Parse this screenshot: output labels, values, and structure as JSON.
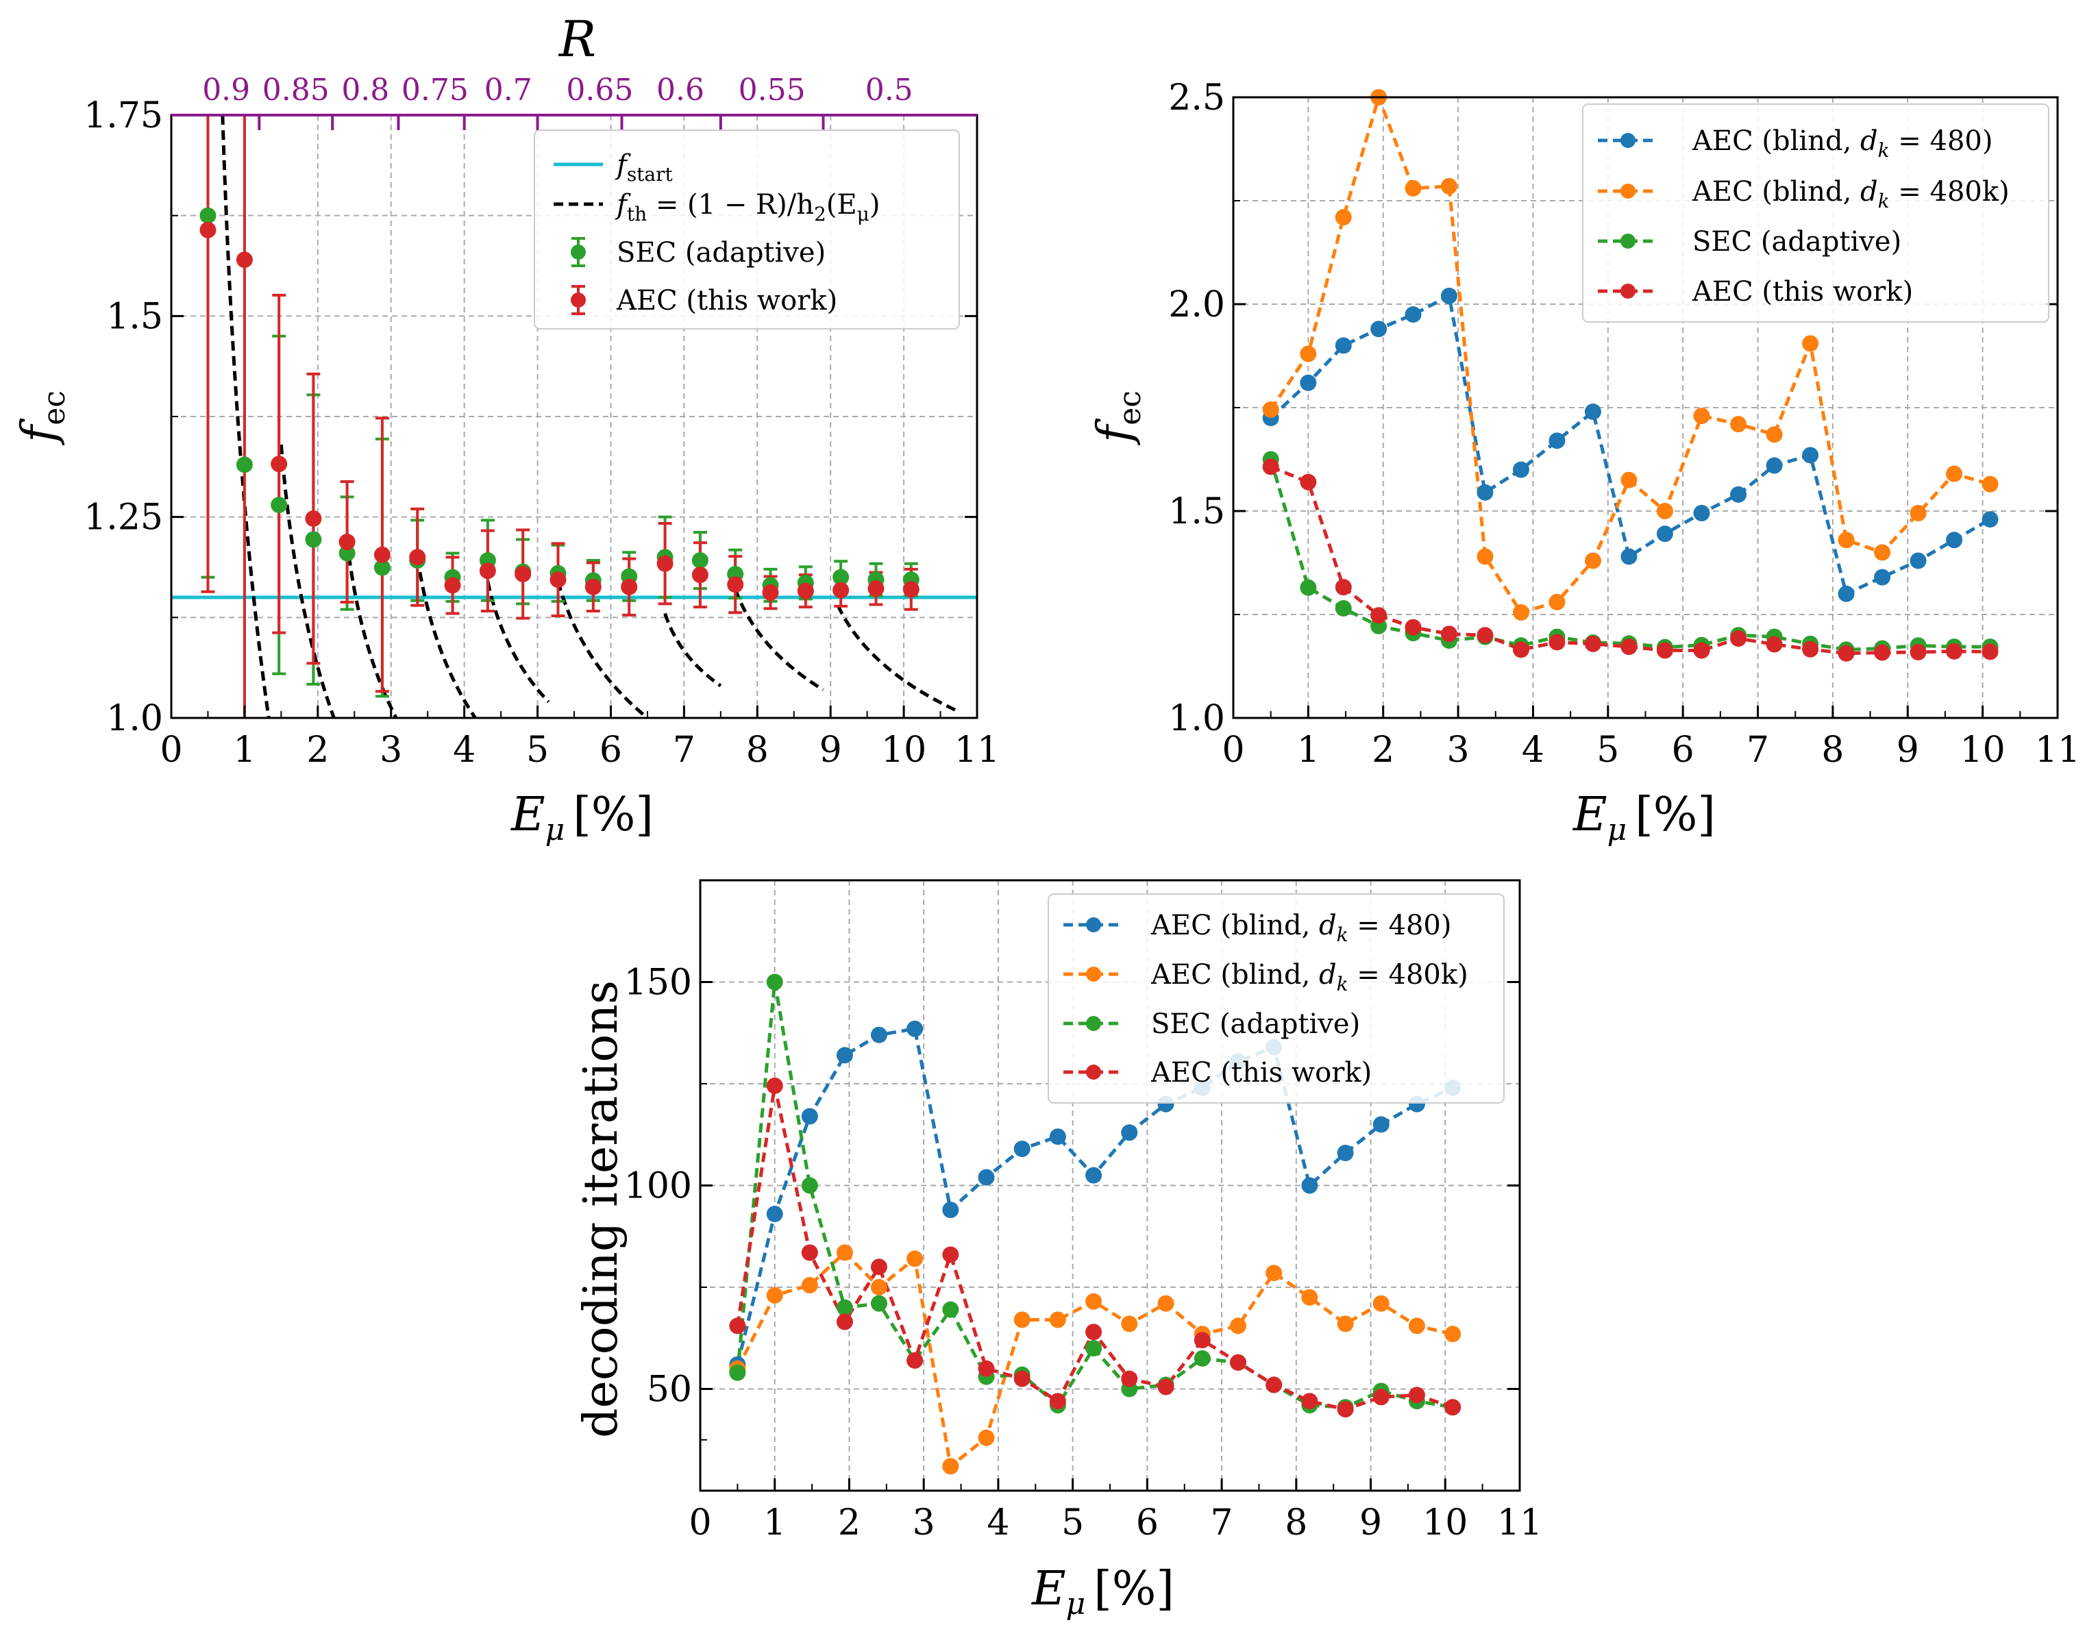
{
  "figure": {
    "x_axis_label_main": "E",
    "x_axis_label_sub": "μ",
    "x_axis_label_unit": "[%]"
  },
  "colors": {
    "blue": "#1f77b4",
    "orange": "#ff7f0e",
    "green": "#2ca02c",
    "red": "#d62728",
    "cyan": "#17becf",
    "purple": "#8b1a8b"
  },
  "chart_data": [
    {
      "type": "scatter",
      "panel": "top-left",
      "ylabel_main": "f",
      "ylabel_sub": "ec",
      "xlim": [
        0,
        11
      ],
      "ylim": [
        1.0,
        1.75
      ],
      "xticks": [
        0,
        1,
        2,
        3,
        4,
        5,
        6,
        7,
        8,
        9,
        10,
        11
      ],
      "yticks": [
        1.0,
        1.25,
        1.5,
        1.75
      ],
      "ytick_labels": [
        "1.0",
        "1.25",
        "1.5",
        "1.75"
      ],
      "top_axis_label": "R",
      "top_axis_ticks": [
        {
          "label": "0.9",
          "x": 0.75
        },
        {
          "label": "0.85",
          "x": 1.7
        },
        {
          "label": "0.8",
          "x": 2.65
        },
        {
          "label": "0.75",
          "x": 3.6
        },
        {
          "label": "0.7",
          "x": 4.6
        },
        {
          "label": "0.65",
          "x": 5.85
        },
        {
          "label": "0.6",
          "x": 6.95
        },
        {
          "label": "0.55",
          "x": 8.2
        },
        {
          "label": "0.5",
          "x": 9.8
        }
      ],
      "top_axis_minor_ticks": [
        1.2,
        2.2,
        3.1,
        4.0,
        5.0,
        6.15,
        7.5,
        8.9
      ],
      "legend": [
        {
          "label": "f_start",
          "text_main": "f",
          "text_sub": "start",
          "style": "cyan-line"
        },
        {
          "label": "f_th = (1 − R)/h2(Eμ)",
          "text_main": "f",
          "text_sub": "th",
          "text_rest": " = (1 − R)/h",
          "text_sub2": "2",
          "text_rest2": "(E",
          "text_sub3": "μ",
          "text_rest3": ")",
          "style": "black-dashed"
        },
        {
          "label": "SEC (adaptive)",
          "style": "green-errorbar"
        },
        {
          "label": "AEC (this work)",
          "style": "red-errorbar"
        }
      ],
      "f_start": 1.15,
      "series": [
        {
          "name": "SEC (adaptive)",
          "color": "green",
          "x": [
            0.5,
            1.0,
            1.47,
            1.94,
            2.4,
            2.88,
            3.36,
            3.84,
            4.32,
            4.8,
            5.28,
            5.76,
            6.25,
            6.74,
            7.22,
            7.7,
            8.18,
            8.66,
            9.14,
            9.62,
            10.1
          ],
          "y": [
            1.625,
            1.315,
            1.265,
            1.222,
            1.205,
            1.187,
            1.196,
            1.175,
            1.196,
            1.182,
            1.18,
            1.171,
            1.176,
            1.2,
            1.196,
            1.179,
            1.165,
            1.168,
            1.175,
            1.172,
            1.172
          ],
          "err": [
            0.45,
            0.0,
            0.21,
            0.18,
            0.07,
            0.16,
            0.05,
            0.03,
            0.05,
            0.04,
            0.035,
            0.025,
            0.03,
            0.05,
            0.035,
            0.03,
            0.02,
            0.02,
            0.02,
            0.02,
            0.02
          ]
        },
        {
          "name": "AEC (this work)",
          "color": "red",
          "x": [
            0.5,
            1.0,
            1.47,
            1.94,
            2.4,
            2.88,
            3.36,
            3.84,
            4.32,
            4.8,
            5.28,
            5.76,
            6.25,
            6.74,
            7.22,
            7.7,
            8.18,
            8.66,
            9.14,
            9.62,
            10.1
          ],
          "y": [
            1.607,
            1.57,
            1.316,
            1.248,
            1.219,
            1.203,
            1.2,
            1.165,
            1.183,
            1.179,
            1.172,
            1.163,
            1.163,
            1.192,
            1.178,
            1.166,
            1.156,
            1.158,
            1.159,
            1.161,
            1.16
          ],
          "err": [
            0.45,
            0.57,
            0.21,
            0.18,
            0.075,
            0.17,
            0.06,
            0.035,
            0.05,
            0.055,
            0.045,
            0.03,
            0.035,
            0.05,
            0.04,
            0.035,
            0.02,
            0.02,
            0.02,
            0.02,
            0.025
          ]
        }
      ],
      "threshold_curves": [
        {
          "x": [
            0.7,
            1.33
          ],
          "y": [
            1.75,
            1.0
          ]
        },
        {
          "x": [
            1.5,
            2.22
          ],
          "y": [
            1.34,
            1.0
          ]
        },
        {
          "x": [
            2.4,
            3.07
          ],
          "y": [
            1.22,
            1.0
          ]
        },
        {
          "x": [
            3.36,
            4.15
          ],
          "y": [
            1.2,
            1.0
          ]
        },
        {
          "x": [
            4.32,
            5.15
          ],
          "y": [
            1.17,
            1.02
          ]
        },
        {
          "x": [
            5.28,
            6.5
          ],
          "y": [
            1.17,
            1.0
          ]
        },
        {
          "x": [
            6.74,
            7.5
          ],
          "y": [
            1.13,
            1.04
          ]
        },
        {
          "x": [
            7.7,
            8.9
          ],
          "y": [
            1.16,
            1.035
          ]
        },
        {
          "x": [
            9.1,
            10.7
          ],
          "y": [
            1.14,
            1.01
          ]
        }
      ]
    },
    {
      "type": "line",
      "panel": "top-right",
      "ylabel_main": "f",
      "ylabel_sub": "ec",
      "xlim": [
        0,
        11
      ],
      "ylim": [
        1.0,
        2.5
      ],
      "xticks": [
        0,
        1,
        2,
        3,
        4,
        5,
        6,
        7,
        8,
        9,
        10,
        11
      ],
      "yticks": [
        1.0,
        1.5,
        2.0,
        2.5
      ],
      "ytick_labels": [
        "1.0",
        "1.5",
        "2.0",
        "2.5"
      ],
      "legend": [
        {
          "label": "AEC (blind, dk = 480)",
          "text_a": "AEC (blind, ",
          "text_d": "d",
          "text_k": "k",
          "text_b": " = 480)",
          "style": "blue"
        },
        {
          "label": "AEC (blind, dk = 480k)",
          "text_a": "AEC (blind, ",
          "text_d": "d",
          "text_k": "k",
          "text_b": " = 480k)",
          "style": "orange"
        },
        {
          "label": "SEC (adaptive)",
          "style": "green"
        },
        {
          "label": "AEC (this work)",
          "style": "red"
        }
      ],
      "series": [
        {
          "name": "AEC (blind, d_k = 480)",
          "color": "blue",
          "x": [
            0.5,
            1.0,
            1.47,
            1.94,
            2.4,
            2.88,
            3.36,
            3.84,
            4.32,
            4.8,
            5.28,
            5.76,
            6.25,
            6.74,
            7.22,
            7.7,
            8.18,
            8.66,
            9.14,
            9.62,
            10.1
          ],
          "y": [
            1.725,
            1.81,
            1.9,
            1.94,
            1.975,
            2.02,
            1.545,
            1.6,
            1.67,
            1.74,
            1.39,
            1.445,
            1.495,
            1.54,
            1.61,
            1.635,
            1.3,
            1.34,
            1.38,
            1.43,
            1.48
          ]
        },
        {
          "name": "AEC (blind, d_k = 480k)",
          "color": "orange",
          "x": [
            0.5,
            1.0,
            1.47,
            1.94,
            2.4,
            2.88,
            3.36,
            3.84,
            4.32,
            4.8,
            5.28,
            5.76,
            6.25,
            6.74,
            7.22,
            7.7,
            8.18,
            8.66,
            9.14,
            9.62,
            10.1
          ],
          "y": [
            1.745,
            1.88,
            2.21,
            2.5,
            2.28,
            2.285,
            1.39,
            1.255,
            1.28,
            1.38,
            1.575,
            1.5,
            1.73,
            1.71,
            1.685,
            1.905,
            1.43,
            1.4,
            1.495,
            1.59,
            1.565
          ]
        },
        {
          "name": "SEC (adaptive)",
          "color": "green",
          "x": [
            0.5,
            1.0,
            1.47,
            1.94,
            2.4,
            2.88,
            3.36,
            3.84,
            4.32,
            4.8,
            5.28,
            5.76,
            6.25,
            6.74,
            7.22,
            7.7,
            8.18,
            8.66,
            9.14,
            9.62,
            10.1
          ],
          "y": [
            1.625,
            1.315,
            1.265,
            1.222,
            1.205,
            1.187,
            1.196,
            1.175,
            1.196,
            1.182,
            1.18,
            1.171,
            1.176,
            1.2,
            1.196,
            1.179,
            1.165,
            1.168,
            1.175,
            1.172,
            1.172
          ]
        },
        {
          "name": "AEC (this work)",
          "color": "red",
          "x": [
            0.5,
            1.0,
            1.47,
            1.94,
            2.4,
            2.88,
            3.36,
            3.84,
            4.32,
            4.8,
            5.28,
            5.76,
            6.25,
            6.74,
            7.22,
            7.7,
            8.18,
            8.66,
            9.14,
            9.62,
            10.1
          ],
          "y": [
            1.607,
            1.57,
            1.316,
            1.248,
            1.219,
            1.203,
            1.2,
            1.165,
            1.183,
            1.179,
            1.172,
            1.163,
            1.163,
            1.192,
            1.178,
            1.166,
            1.156,
            1.158,
            1.159,
            1.161,
            1.16
          ]
        }
      ]
    },
    {
      "type": "line",
      "panel": "bottom",
      "ylabel": "decoding iterations",
      "xlim": [
        0,
        11
      ],
      "ylim": [
        25,
        175
      ],
      "xticks": [
        0,
        1,
        2,
        3,
        4,
        5,
        6,
        7,
        8,
        9,
        10,
        11
      ],
      "yticks": [
        50,
        100,
        150
      ],
      "ytick_labels": [
        "50",
        "100",
        "150"
      ],
      "legend": [
        {
          "label": "AEC (blind, dk = 480)",
          "text_a": "AEC (blind, ",
          "text_d": "d",
          "text_k": "k",
          "text_b": " = 480)",
          "style": "blue"
        },
        {
          "label": "AEC (blind, dk = 480k)",
          "text_a": "AEC (blind, ",
          "text_d": "d",
          "text_k": "k",
          "text_b": " = 480k)",
          "style": "orange"
        },
        {
          "label": "SEC (adaptive)",
          "style": "green"
        },
        {
          "label": "AEC (this work)",
          "style": "red"
        }
      ],
      "series": [
        {
          "name": "AEC (blind, d_k = 480)",
          "color": "blue",
          "x": [
            0.5,
            1.0,
            1.47,
            1.94,
            2.4,
            2.88,
            3.36,
            3.84,
            4.32,
            4.8,
            5.28,
            5.76,
            6.25,
            6.74,
            7.22,
            7.7,
            8.18,
            8.66,
            9.14,
            9.62,
            10.1
          ],
          "y": [
            56,
            93,
            117,
            132,
            137,
            138.5,
            94,
            102,
            109,
            112,
            102.5,
            113,
            120,
            124,
            130.5,
            134,
            100,
            108,
            115,
            120,
            124
          ]
        },
        {
          "name": "AEC (blind, d_k = 480k)",
          "color": "orange",
          "x": [
            0.5,
            1.0,
            1.47,
            1.94,
            2.4,
            2.88,
            3.36,
            3.84,
            4.32,
            4.8,
            5.28,
            5.76,
            6.25,
            6.74,
            7.22,
            7.7,
            8.18,
            8.66,
            9.14,
            9.62,
            10.1
          ],
          "y": [
            55,
            73,
            75.5,
            83.5,
            75,
            82,
            31,
            38,
            67,
            67,
            71.5,
            66,
            71,
            63.5,
            65.5,
            78.5,
            72.5,
            66,
            71,
            65.5,
            63.5
          ]
        },
        {
          "name": "SEC (adaptive)",
          "color": "green",
          "x": [
            0.5,
            1.0,
            1.47,
            1.94,
            2.4,
            2.88,
            3.36,
            3.84,
            4.32,
            4.8,
            5.28,
            5.76,
            6.25,
            6.74,
            7.22,
            7.7,
            8.18,
            8.66,
            9.14,
            9.62,
            10.1
          ],
          "y": [
            54,
            150,
            100,
            70,
            71,
            57,
            69.5,
            53,
            53.5,
            46,
            60,
            50,
            51,
            57.5,
            56.5,
            51,
            46,
            45.5,
            49.5,
            47,
            45.5
          ]
        },
        {
          "name": "AEC (this work)",
          "color": "red",
          "x": [
            0.5,
            1.0,
            1.47,
            1.94,
            2.4,
            2.88,
            3.36,
            3.84,
            4.32,
            4.8,
            5.28,
            5.76,
            6.25,
            6.74,
            7.22,
            7.7,
            8.18,
            8.66,
            9.14,
            9.62,
            10.1
          ],
          "y": [
            65.5,
            124.5,
            83.5,
            66.5,
            80,
            57,
            83,
            55,
            52.5,
            47,
            64,
            52.5,
            50.5,
            62,
            56.5,
            51,
            47,
            45,
            48,
            48.5,
            45.5
          ]
        }
      ]
    }
  ]
}
